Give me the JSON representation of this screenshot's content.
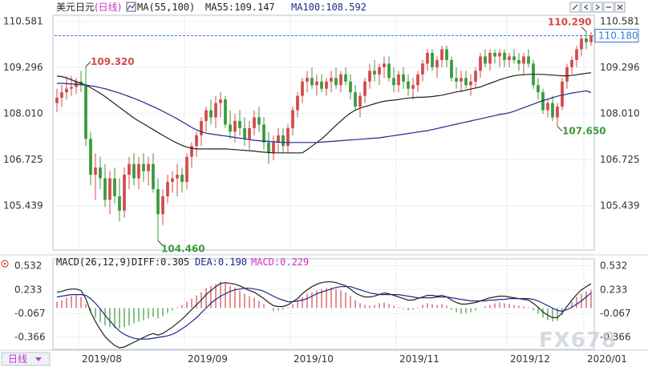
{
  "header": {
    "symbol": "美元日元",
    "timeframe": "(日线)",
    "ma_label": "MA(55,100)",
    "ma55": "MA55:109.147",
    "ma100": "MA100:108.592"
  },
  "macd_header": {
    "label": "MACD(26,12,9)",
    "diff": "DIFF:0.305",
    "dea": "DEA:0.190",
    "macd": "MACD:0.229"
  },
  "bottom_tab": "日线",
  "watermark": "FX678",
  "current_price": "110.180",
  "colors": {
    "up": "#d24b4b",
    "down": "#3a9a3a",
    "ma55": "#222222",
    "ma100": "#1c2a8c",
    "macd_dea": "#1c2a8c",
    "macd_label": "#cc33cc",
    "price_box": "#3a7bd5",
    "dashed": "#3a7bd5"
  },
  "icons": [
    "pencil-icon",
    "chevron-left-icon",
    "chevron-right-icon",
    "minus-icon",
    "close-icon"
  ],
  "chart_data": {
    "type": "candlestick",
    "y_ticks": [
      "110.581",
      "109.296",
      "108.010",
      "106.725",
      "105.439"
    ],
    "y_range": [
      104.2,
      110.75
    ],
    "macd_ticks": [
      "0.532",
      "0.233",
      "-0.067",
      "-0.366"
    ],
    "macd_range": [
      -0.52,
      0.62
    ],
    "x_labels": [
      "2019/08",
      "2019/09",
      "2019/10",
      "2019/11",
      "2019/12",
      "2020/01"
    ],
    "annotations": [
      {
        "text": "109.320",
        "value": 109.32,
        "kind": "high"
      },
      {
        "text": "104.460",
        "value": 104.46,
        "kind": "low"
      },
      {
        "text": "107.650",
        "value": 107.65,
        "kind": "low"
      },
      {
        "text": "110.290",
        "value": 110.29,
        "kind": "high"
      }
    ],
    "ohlc": [
      [
        108.3,
        108.7,
        108.05,
        108.45
      ],
      [
        108.45,
        108.8,
        108.2,
        108.6
      ],
      [
        108.6,
        109.05,
        108.4,
        108.7
      ],
      [
        108.7,
        109.05,
        108.5,
        108.75
      ],
      [
        108.75,
        109.0,
        108.55,
        108.9
      ],
      [
        108.9,
        109.2,
        108.6,
        108.8
      ],
      [
        108.8,
        109.32,
        107.1,
        107.3
      ],
      [
        107.3,
        107.5,
        106.0,
        106.3
      ],
      [
        106.3,
        106.9,
        105.6,
        106.5
      ],
      [
        106.5,
        106.8,
        105.9,
        106.2
      ],
      [
        106.2,
        106.6,
        105.4,
        105.6
      ],
      [
        105.6,
        106.4,
        105.2,
        106.2
      ],
      [
        106.2,
        106.5,
        105.5,
        105.7
      ],
      [
        105.7,
        106.2,
        105.0,
        105.3
      ],
      [
        105.3,
        106.5,
        105.1,
        106.3
      ],
      [
        106.3,
        106.8,
        105.9,
        106.6
      ],
      [
        106.6,
        106.9,
        106.0,
        106.2
      ],
      [
        106.2,
        106.8,
        105.9,
        106.6
      ],
      [
        106.6,
        106.9,
        106.1,
        106.4
      ],
      [
        106.4,
        106.8,
        106.0,
        106.6
      ],
      [
        106.6,
        106.9,
        105.8,
        105.9
      ],
      [
        105.9,
        106.2,
        104.46,
        105.2
      ],
      [
        105.2,
        105.9,
        104.9,
        105.7
      ],
      [
        105.7,
        106.3,
        105.5,
        106.1
      ],
      [
        106.1,
        106.4,
        105.8,
        106.2
      ],
      [
        106.2,
        106.6,
        105.7,
        106.3
      ],
      [
        106.3,
        106.5,
        105.8,
        106.1
      ],
      [
        106.1,
        106.9,
        105.9,
        106.8
      ],
      [
        106.8,
        107.2,
        106.5,
        107.1
      ],
      [
        107.1,
        107.5,
        106.8,
        107.4
      ],
      [
        107.4,
        107.9,
        107.1,
        107.8
      ],
      [
        107.8,
        108.2,
        107.5,
        108.1
      ],
      [
        108.1,
        108.4,
        107.7,
        107.9
      ],
      [
        107.9,
        108.5,
        107.6,
        108.3
      ],
      [
        108.3,
        108.6,
        107.9,
        108.4
      ],
      [
        108.4,
        108.5,
        107.6,
        107.7
      ],
      [
        107.7,
        108.1,
        107.3,
        107.5
      ],
      [
        107.5,
        108.0,
        107.2,
        107.8
      ],
      [
        107.8,
        108.1,
        107.4,
        107.6
      ],
      [
        107.6,
        107.9,
        107.1,
        107.3
      ],
      [
        107.3,
        107.8,
        107.0,
        107.6
      ],
      [
        107.6,
        108.1,
        107.4,
        107.9
      ],
      [
        107.9,
        108.2,
        107.5,
        107.7
      ],
      [
        107.7,
        107.9,
        107.0,
        107.2
      ],
      [
        107.2,
        107.5,
        106.6,
        106.9
      ],
      [
        106.9,
        107.4,
        106.7,
        107.2
      ],
      [
        107.2,
        107.6,
        106.9,
        107.4
      ],
      [
        107.4,
        107.6,
        106.9,
        107.1
      ],
      [
        107.1,
        107.7,
        106.9,
        107.6
      ],
      [
        107.6,
        108.2,
        107.4,
        108.1
      ],
      [
        108.1,
        108.6,
        107.9,
        108.5
      ],
      [
        108.5,
        109.0,
        108.3,
        108.9
      ],
      [
        108.9,
        109.2,
        108.6,
        109.0
      ],
      [
        109.0,
        109.3,
        108.7,
        108.8
      ],
      [
        108.8,
        109.1,
        108.5,
        108.9
      ],
      [
        108.9,
        109.1,
        108.6,
        108.7
      ],
      [
        108.7,
        109.0,
        108.5,
        108.9
      ],
      [
        108.9,
        109.2,
        108.6,
        109.0
      ],
      [
        109.0,
        109.3,
        108.7,
        108.8
      ],
      [
        108.8,
        109.2,
        108.6,
        109.1
      ],
      [
        109.1,
        109.3,
        108.8,
        108.9
      ],
      [
        108.9,
        109.1,
        108.4,
        108.6
      ],
      [
        108.6,
        108.8,
        108.1,
        108.2
      ],
      [
        108.2,
        108.6,
        107.9,
        108.5
      ],
      [
        108.5,
        109.0,
        108.3,
        108.9
      ],
      [
        108.9,
        109.4,
        108.7,
        109.2
      ],
      [
        109.2,
        109.5,
        108.9,
        109.1
      ],
      [
        109.1,
        109.4,
        108.8,
        109.3
      ],
      [
        109.3,
        109.6,
        109.0,
        109.4
      ],
      [
        109.4,
        109.6,
        108.9,
        109.0
      ],
      [
        109.0,
        109.3,
        108.6,
        108.8
      ],
      [
        108.8,
        109.2,
        108.6,
        109.1
      ],
      [
        109.1,
        109.3,
        108.7,
        108.9
      ],
      [
        108.9,
        109.1,
        108.5,
        108.7
      ],
      [
        108.7,
        109.0,
        108.4,
        108.8
      ],
      [
        108.8,
        109.2,
        108.6,
        109.1
      ],
      [
        109.1,
        109.5,
        108.9,
        109.4
      ],
      [
        109.4,
        109.8,
        109.2,
        109.7
      ],
      [
        109.7,
        109.8,
        109.2,
        109.3
      ],
      [
        109.3,
        109.6,
        109.0,
        109.5
      ],
      [
        109.5,
        109.9,
        109.3,
        109.8
      ],
      [
        109.8,
        109.9,
        109.3,
        109.5
      ],
      [
        109.5,
        109.6,
        108.9,
        109.0
      ],
      [
        109.0,
        109.3,
        108.7,
        108.9
      ],
      [
        108.9,
        109.2,
        108.6,
        109.0
      ],
      [
        109.0,
        109.2,
        108.7,
        108.8
      ],
      [
        108.8,
        109.1,
        108.5,
        108.9
      ],
      [
        108.9,
        109.3,
        108.7,
        109.2
      ],
      [
        109.2,
        109.7,
        109.0,
        109.6
      ],
      [
        109.6,
        109.8,
        109.3,
        109.4
      ],
      [
        109.4,
        109.8,
        109.2,
        109.7
      ],
      [
        109.7,
        109.8,
        109.4,
        109.6
      ],
      [
        109.6,
        109.8,
        109.3,
        109.7
      ],
      [
        109.7,
        109.8,
        109.3,
        109.5
      ],
      [
        109.5,
        109.7,
        109.3,
        109.6
      ],
      [
        109.6,
        109.8,
        109.4,
        109.5
      ],
      [
        109.5,
        109.7,
        109.2,
        109.4
      ],
      [
        109.4,
        109.7,
        109.1,
        109.6
      ],
      [
        109.6,
        109.8,
        109.3,
        109.4
      ],
      [
        109.4,
        109.5,
        108.7,
        108.8
      ],
      [
        108.8,
        109.0,
        108.4,
        108.6
      ],
      [
        108.6,
        108.7,
        108.0,
        108.1
      ],
      [
        108.1,
        108.4,
        107.9,
        108.3
      ],
      [
        108.3,
        108.5,
        107.8,
        107.9
      ],
      [
        107.9,
        108.3,
        107.65,
        108.2
      ],
      [
        108.2,
        109.0,
        108.1,
        108.9
      ],
      [
        108.9,
        109.4,
        108.7,
        109.3
      ],
      [
        109.3,
        109.6,
        109.1,
        109.5
      ],
      [
        109.5,
        109.9,
        109.3,
        109.8
      ],
      [
        109.8,
        110.2,
        109.6,
        110.1
      ],
      [
        110.1,
        110.29,
        109.8,
        110.0
      ],
      [
        110.0,
        110.28,
        109.9,
        110.18
      ]
    ],
    "ma55": [
      109.05,
      109.04,
      109.0,
      108.95,
      108.9,
      108.85,
      108.8,
      108.73,
      108.65,
      108.57,
      108.48,
      108.38,
      108.28,
      108.18,
      108.08,
      107.98,
      107.88,
      107.8,
      107.72,
      107.64,
      107.56,
      107.48,
      107.4,
      107.32,
      107.25,
      107.18,
      107.12,
      107.07,
      107.04,
      107.02,
      107.02,
      107.02,
      107.02,
      107.02,
      107.02,
      107.02,
      107.01,
      107.0,
      106.99,
      106.98,
      106.97,
      106.96,
      106.94,
      106.93,
      106.92,
      106.91,
      106.91,
      106.91,
      106.91,
      106.91,
      106.91,
      106.91,
      107.0,
      107.1,
      107.2,
      107.3,
      107.42,
      107.55,
      107.68,
      107.8,
      107.92,
      108.02,
      108.1,
      108.16,
      108.2,
      108.24,
      108.28,
      108.32,
      108.35,
      108.37,
      108.38,
      108.4,
      108.42,
      108.44,
      108.45,
      108.46,
      108.46,
      108.47,
      108.48,
      108.5,
      108.52,
      108.55,
      108.58,
      108.61,
      108.63,
      108.66,
      108.69,
      108.72,
      108.75,
      108.8,
      108.85,
      108.9,
      108.95,
      108.99,
      109.03,
      109.06,
      109.08,
      109.09,
      109.1,
      109.1,
      109.1,
      109.1,
      109.09,
      109.08,
      109.07,
      109.06,
      109.06,
      109.07,
      109.09,
      109.11,
      109.13,
      109.147
    ],
    "ma100": [
      108.85,
      108.85,
      108.84,
      108.83,
      108.82,
      108.81,
      108.8,
      108.78,
      108.76,
      108.73,
      108.7,
      108.66,
      108.62,
      108.58,
      108.53,
      108.48,
      108.43,
      108.38,
      108.32,
      108.26,
      108.2,
      108.14,
      108.07,
      108.0,
      107.93,
      107.86,
      107.78,
      107.7,
      107.62,
      107.55,
      107.5,
      107.46,
      107.44,
      107.42,
      107.4,
      107.38,
      107.36,
      107.34,
      107.32,
      107.3,
      107.28,
      107.26,
      107.25,
      107.24,
      107.23,
      107.22,
      107.21,
      107.2,
      107.2,
      107.2,
      107.2,
      107.2,
      107.2,
      107.2,
      107.2,
      107.21,
      107.22,
      107.23,
      107.24,
      107.25,
      107.26,
      107.27,
      107.28,
      107.29,
      107.3,
      107.31,
      107.32,
      107.33,
      107.35,
      107.37,
      107.39,
      107.41,
      107.43,
      107.45,
      107.47,
      107.49,
      107.51,
      107.53,
      107.56,
      107.59,
      107.62,
      107.65,
      107.68,
      107.71,
      107.74,
      107.77,
      107.8,
      107.83,
      107.86,
      107.89,
      107.92,
      107.95,
      107.98,
      108.0,
      108.03,
      108.07,
      108.12,
      108.17,
      108.22,
      108.27,
      108.32,
      108.37,
      108.41,
      108.45,
      108.49,
      108.52,
      108.55,
      108.58,
      108.6,
      108.62,
      108.64,
      108.592
    ],
    "macd_hist": [
      0.08,
      0.1,
      0.13,
      0.15,
      0.16,
      0.14,
      0.05,
      -0.05,
      -0.12,
      -0.18,
      -0.22,
      -0.24,
      -0.25,
      -0.26,
      -0.24,
      -0.22,
      -0.19,
      -0.17,
      -0.15,
      -0.13,
      -0.11,
      -0.13,
      -0.1,
      -0.06,
      -0.03,
      0.01,
      0.04,
      0.08,
      0.12,
      0.16,
      0.2,
      0.25,
      0.28,
      0.3,
      0.33,
      0.32,
      0.28,
      0.26,
      0.22,
      0.18,
      0.15,
      0.13,
      0.09,
      0.05,
      0.0,
      -0.04,
      -0.03,
      -0.02,
      0.01,
      0.05,
      0.09,
      0.14,
      0.18,
      0.2,
      0.22,
      0.24,
      0.25,
      0.26,
      0.24,
      0.22,
      0.2,
      0.15,
      0.1,
      0.06,
      0.04,
      0.03,
      0.04,
      0.06,
      0.07,
      0.05,
      0.03,
      0.01,
      -0.01,
      -0.03,
      -0.02,
      0.01,
      0.04,
      0.06,
      0.05,
      0.04,
      0.05,
      0.03,
      -0.02,
      -0.05,
      -0.07,
      -0.06,
      -0.05,
      -0.03,
      0.0,
      0.02,
      0.04,
      0.06,
      0.07,
      0.06,
      0.05,
      0.04,
      0.03,
      0.02,
      0.01,
      -0.03,
      -0.07,
      -0.12,
      -0.15,
      -0.17,
      -0.16,
      -0.09,
      0.0,
      0.08,
      0.14,
      0.18,
      0.21,
      0.229
    ],
    "macd_diff": [
      0.2,
      0.21,
      0.23,
      0.24,
      0.24,
      0.22,
      0.12,
      -0.05,
      -0.17,
      -0.27,
      -0.36,
      -0.42,
      -0.47,
      -0.5,
      -0.49,
      -0.46,
      -0.43,
      -0.4,
      -0.37,
      -0.34,
      -0.32,
      -0.34,
      -0.32,
      -0.28,
      -0.24,
      -0.19,
      -0.14,
      -0.08,
      -0.02,
      0.04,
      0.1,
      0.17,
      0.22,
      0.27,
      0.31,
      0.32,
      0.31,
      0.3,
      0.28,
      0.25,
      0.22,
      0.2,
      0.16,
      0.12,
      0.07,
      0.03,
      0.02,
      0.02,
      0.04,
      0.08,
      0.12,
      0.18,
      0.23,
      0.27,
      0.3,
      0.32,
      0.33,
      0.33,
      0.32,
      0.3,
      0.28,
      0.24,
      0.19,
      0.16,
      0.14,
      0.14,
      0.15,
      0.17,
      0.19,
      0.18,
      0.16,
      0.14,
      0.12,
      0.1,
      0.1,
      0.12,
      0.14,
      0.16,
      0.16,
      0.15,
      0.16,
      0.14,
      0.1,
      0.07,
      0.05,
      0.05,
      0.06,
      0.07,
      0.09,
      0.11,
      0.13,
      0.14,
      0.15,
      0.15,
      0.14,
      0.13,
      0.12,
      0.11,
      0.1,
      0.06,
      0.01,
      -0.05,
      -0.09,
      -0.12,
      -0.12,
      -0.06,
      0.02,
      0.1,
      0.17,
      0.23,
      0.27,
      0.305
    ],
    "macd_dea": [
      0.14,
      0.15,
      0.16,
      0.17,
      0.17,
      0.17,
      0.16,
      0.12,
      0.06,
      -0.01,
      -0.09,
      -0.16,
      -0.23,
      -0.29,
      -0.33,
      -0.36,
      -0.38,
      -0.39,
      -0.39,
      -0.39,
      -0.38,
      -0.37,
      -0.36,
      -0.35,
      -0.33,
      -0.3,
      -0.26,
      -0.22,
      -0.17,
      -0.12,
      -0.06,
      0.0,
      0.06,
      0.11,
      0.15,
      0.18,
      0.21,
      0.23,
      0.24,
      0.25,
      0.25,
      0.24,
      0.23,
      0.21,
      0.18,
      0.15,
      0.12,
      0.1,
      0.08,
      0.08,
      0.09,
      0.1,
      0.12,
      0.15,
      0.18,
      0.2,
      0.22,
      0.24,
      0.26,
      0.27,
      0.27,
      0.27,
      0.25,
      0.23,
      0.21,
      0.19,
      0.18,
      0.17,
      0.17,
      0.17,
      0.17,
      0.17,
      0.16,
      0.15,
      0.14,
      0.13,
      0.13,
      0.13,
      0.13,
      0.14,
      0.14,
      0.14,
      0.13,
      0.12,
      0.11,
      0.1,
      0.09,
      0.09,
      0.09,
      0.09,
      0.1,
      0.1,
      0.11,
      0.11,
      0.12,
      0.12,
      0.12,
      0.12,
      0.12,
      0.11,
      0.09,
      0.06,
      0.03,
      0.0,
      -0.03,
      -0.04,
      -0.02,
      0.01,
      0.05,
      0.09,
      0.14,
      0.19
    ]
  }
}
